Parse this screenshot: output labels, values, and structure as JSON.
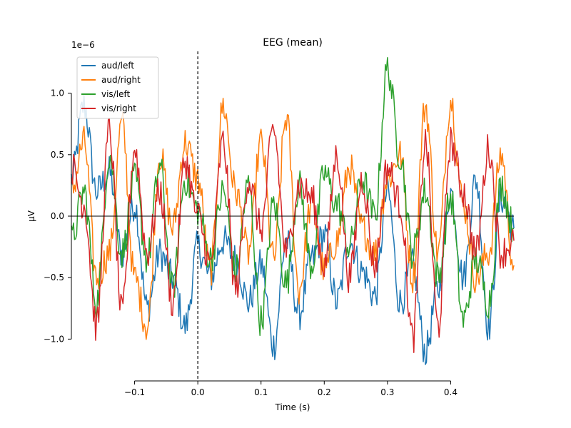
{
  "chart_data": {
    "type": "line",
    "title": "EEG (mean)",
    "xlabel": "Time (s)",
    "ylabel": "µV",
    "y_exponent_label": "1e−6",
    "xlim": [
      -0.2,
      0.5
    ],
    "ylim": [
      -1.34,
      1.34
    ],
    "x_ticks": [
      -0.1,
      0.0,
      0.1,
      0.2,
      0.3,
      0.4
    ],
    "x_tick_labels": [
      "−0.1",
      "0.0",
      "0.1",
      "0.2",
      "0.3",
      "0.4"
    ],
    "y_ticks": [
      -1.0,
      -0.5,
      0.0,
      0.5,
      1.0
    ],
    "y_tick_labels": [
      "−1.0",
      "−0.5",
      "0.0",
      "0.5",
      "1.0"
    ],
    "y_unit_scale": 1e-06,
    "event_marker_x": 0.0,
    "zero_line_y": 0.0,
    "legend_position": "top-left",
    "grid": false,
    "x": [
      -0.2,
      -0.18,
      -0.16,
      -0.14,
      -0.12,
      -0.1,
      -0.08,
      -0.06,
      -0.04,
      -0.02,
      0.0,
      0.02,
      0.04,
      0.06,
      0.08,
      0.1,
      0.12,
      0.14,
      0.16,
      0.18,
      0.2,
      0.22,
      0.24,
      0.26,
      0.28,
      0.3,
      0.32,
      0.34,
      0.36,
      0.38,
      0.4,
      0.42,
      0.44,
      0.46,
      0.48,
      0.5
    ],
    "series": [
      {
        "name": "aud/left",
        "color": "#1f77b4",
        "values": [
          0.3,
          0.9,
          0.2,
          0.35,
          -0.3,
          0.1,
          -0.75,
          -0.3,
          -0.5,
          -0.9,
          -0.25,
          -0.5,
          -0.2,
          -0.35,
          -0.7,
          -0.4,
          -1.05,
          -0.2,
          -0.8,
          -0.35,
          -0.15,
          -0.7,
          -0.2,
          -0.45,
          -0.65,
          0.2,
          -0.7,
          -0.4,
          -1.1,
          -0.6,
          0.2,
          -0.5,
          0.3,
          -0.9,
          0.15,
          -0.1
        ]
      },
      {
        "name": "aud/right",
        "color": "#ff7f0e",
        "values": [
          0.2,
          0.6,
          -0.5,
          -0.3,
          0.75,
          -0.5,
          -0.9,
          0.5,
          -0.1,
          0.6,
          0.3,
          -0.45,
          0.9,
          0.2,
          -0.3,
          0.6,
          -0.35,
          0.8,
          -0.6,
          0.1,
          -0.45,
          -0.2,
          0.4,
          -0.1,
          -0.3,
          0.3,
          0.5,
          -0.5,
          0.9,
          -0.3,
          0.95,
          0.1,
          -0.5,
          -0.3,
          0.5,
          -0.4
        ]
      },
      {
        "name": "vis/left",
        "color": "#2ca02c",
        "values": [
          -0.2,
          0.2,
          -0.7,
          0.5,
          -0.3,
          0.3,
          -0.35,
          0.4,
          -0.6,
          0.3,
          0.05,
          -0.35,
          0.2,
          -0.45,
          0.25,
          -0.85,
          0.1,
          -0.55,
          0.25,
          -0.4,
          0.35,
          0.1,
          -0.25,
          0.3,
          0.0,
          1.2,
          0.5,
          -0.3,
          0.2,
          -0.5,
          0.15,
          -0.85,
          -0.35,
          -0.7,
          0.25,
          -0.1
        ]
      },
      {
        "name": "vis/right",
        "color": "#d62728",
        "values": [
          0.4,
          0.1,
          -0.9,
          0.7,
          -0.8,
          0.55,
          -0.3,
          0.2,
          -0.7,
          0.45,
          0.0,
          -0.4,
          0.6,
          -0.6,
          0.3,
          -0.1,
          0.7,
          -0.3,
          0.25,
          0.15,
          -0.4,
          0.5,
          -0.5,
          0.3,
          -0.4,
          0.4,
          0.1,
          -1.0,
          0.6,
          -0.9,
          0.6,
          0.2,
          -0.3,
          0.55,
          -0.3,
          -0.2
        ]
      }
    ]
  }
}
